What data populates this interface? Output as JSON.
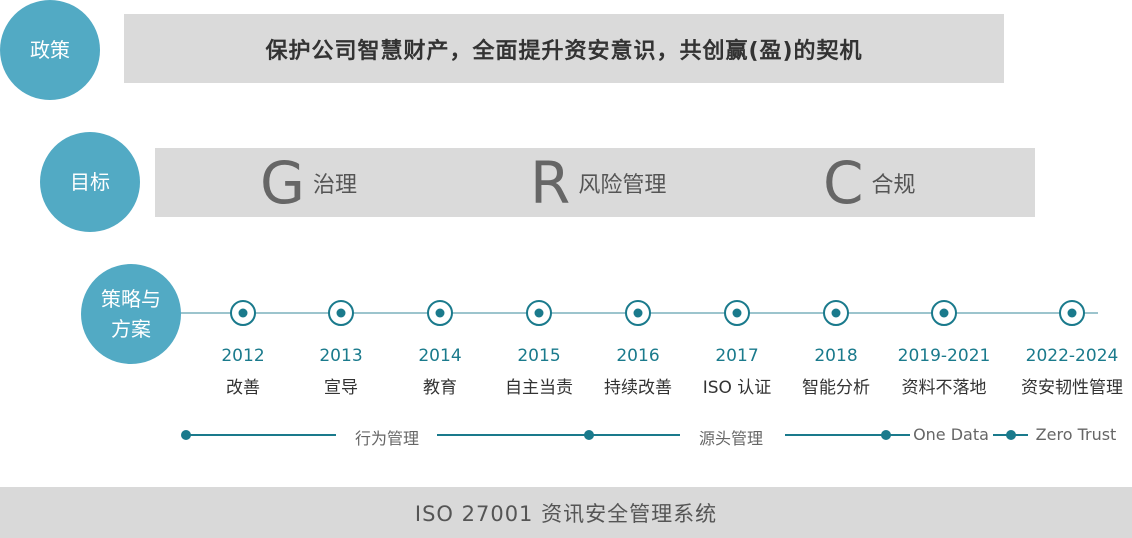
{
  "policy": {
    "label": "政策",
    "text": "保护公司智慧财产，全面提升资安意识，共创赢(盈)的契机"
  },
  "goals": {
    "label": "目标",
    "items": [
      {
        "letter": "G",
        "text": "治理"
      },
      {
        "letter": "R",
        "text": "风险管理"
      },
      {
        "letter": "C",
        "text": "合规"
      }
    ]
  },
  "strategy": {
    "label_line1": "策略与",
    "label_line2": "方案",
    "milestones": [
      {
        "year": "2012",
        "text": "改善"
      },
      {
        "year": "2013",
        "text": "宣导"
      },
      {
        "year": "2014",
        "text": "教育"
      },
      {
        "year": "2015",
        "text": "自主当责"
      },
      {
        "year": "2016",
        "text": "持续改善"
      },
      {
        "year": "2017",
        "text": "ISO 认证"
      },
      {
        "year": "2018",
        "text": "智能分析"
      },
      {
        "year": "2019-2021",
        "text": "资料不落地"
      },
      {
        "year": "2022-2024",
        "text": "资安韧性管理"
      }
    ],
    "phases": [
      "行为管理",
      "源头管理",
      "One Data",
      "Zero Trust"
    ]
  },
  "footer": "ISO 27001 资讯安全管理系统",
  "colors": {
    "circle": "#52aac4",
    "accent": "#1a7a8c",
    "bar": "#dadada"
  }
}
